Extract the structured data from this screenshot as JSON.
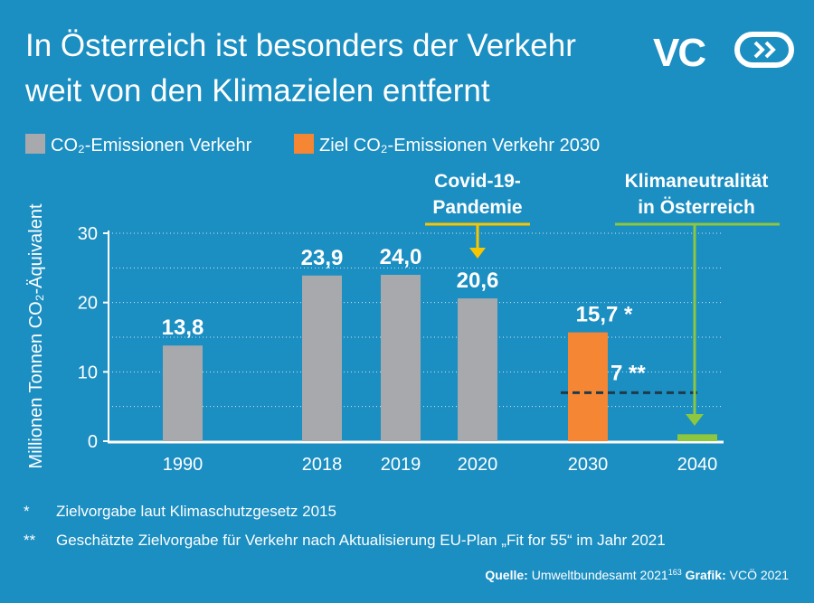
{
  "chart_data": {
    "type": "bar",
    "title_lines": [
      "In Österreich ist besonders der Verkehr",
      "weit von den Klimazielen entfernt"
    ],
    "logo": "VC",
    "legend": [
      {
        "name": "CO₂-Emissionen Verkehr",
        "color": "#a7a9ac"
      },
      {
        "name": "Ziel CO₂-Emissionen Verkehr 2030",
        "color": "#f58634"
      }
    ],
    "y_label": "Millionen Tonnen CO₂-Äquivalent",
    "categories": [
      "1990",
      "2018",
      "2019",
      "2020",
      "2030",
      "2040"
    ],
    "values": [
      13.8,
      23.9,
      24.0,
      20.6,
      15.7,
      1
    ],
    "value_labels": [
      "13,8",
      "23,9",
      "24,0",
      "20,6",
      "15,7 *",
      null
    ],
    "colors": [
      "#a7a9ac",
      "#a7a9ac",
      "#a7a9ac",
      "#a7a9ac",
      "#f58634",
      "#8dc63f"
    ],
    "ylim": [
      0,
      30
    ],
    "yticks": [
      0,
      10,
      20,
      30
    ],
    "grid_yticks": [
      5,
      10,
      15,
      20,
      25,
      30
    ],
    "grid": true,
    "target_line": {
      "value": 7,
      "label": "7 **"
    },
    "annotations": [
      {
        "lines": [
          "Covid-19-",
          "Pandemie"
        ],
        "color": "#f7c600"
      },
      {
        "lines": [
          "Klimaneutralität",
          "in Österreich"
        ],
        "color": "#8dc63f"
      }
    ],
    "footnotes": [
      {
        "marker": "*",
        "text": "Zielvorgabe laut Klimaschutzgesetz 2015"
      },
      {
        "marker": "**",
        "text": "Geschätzte Zielvorgabe für Verkehr nach Aktualisierung EU-Plan „Fit for 55“ im Jahr 2021"
      }
    ],
    "source": {
      "label": "Quelle:",
      "text": "Umweltbundesamt 2021",
      "ref": "163",
      "graphic_label": "Grafik:",
      "graphic_text": "VCÖ 2021"
    }
  }
}
